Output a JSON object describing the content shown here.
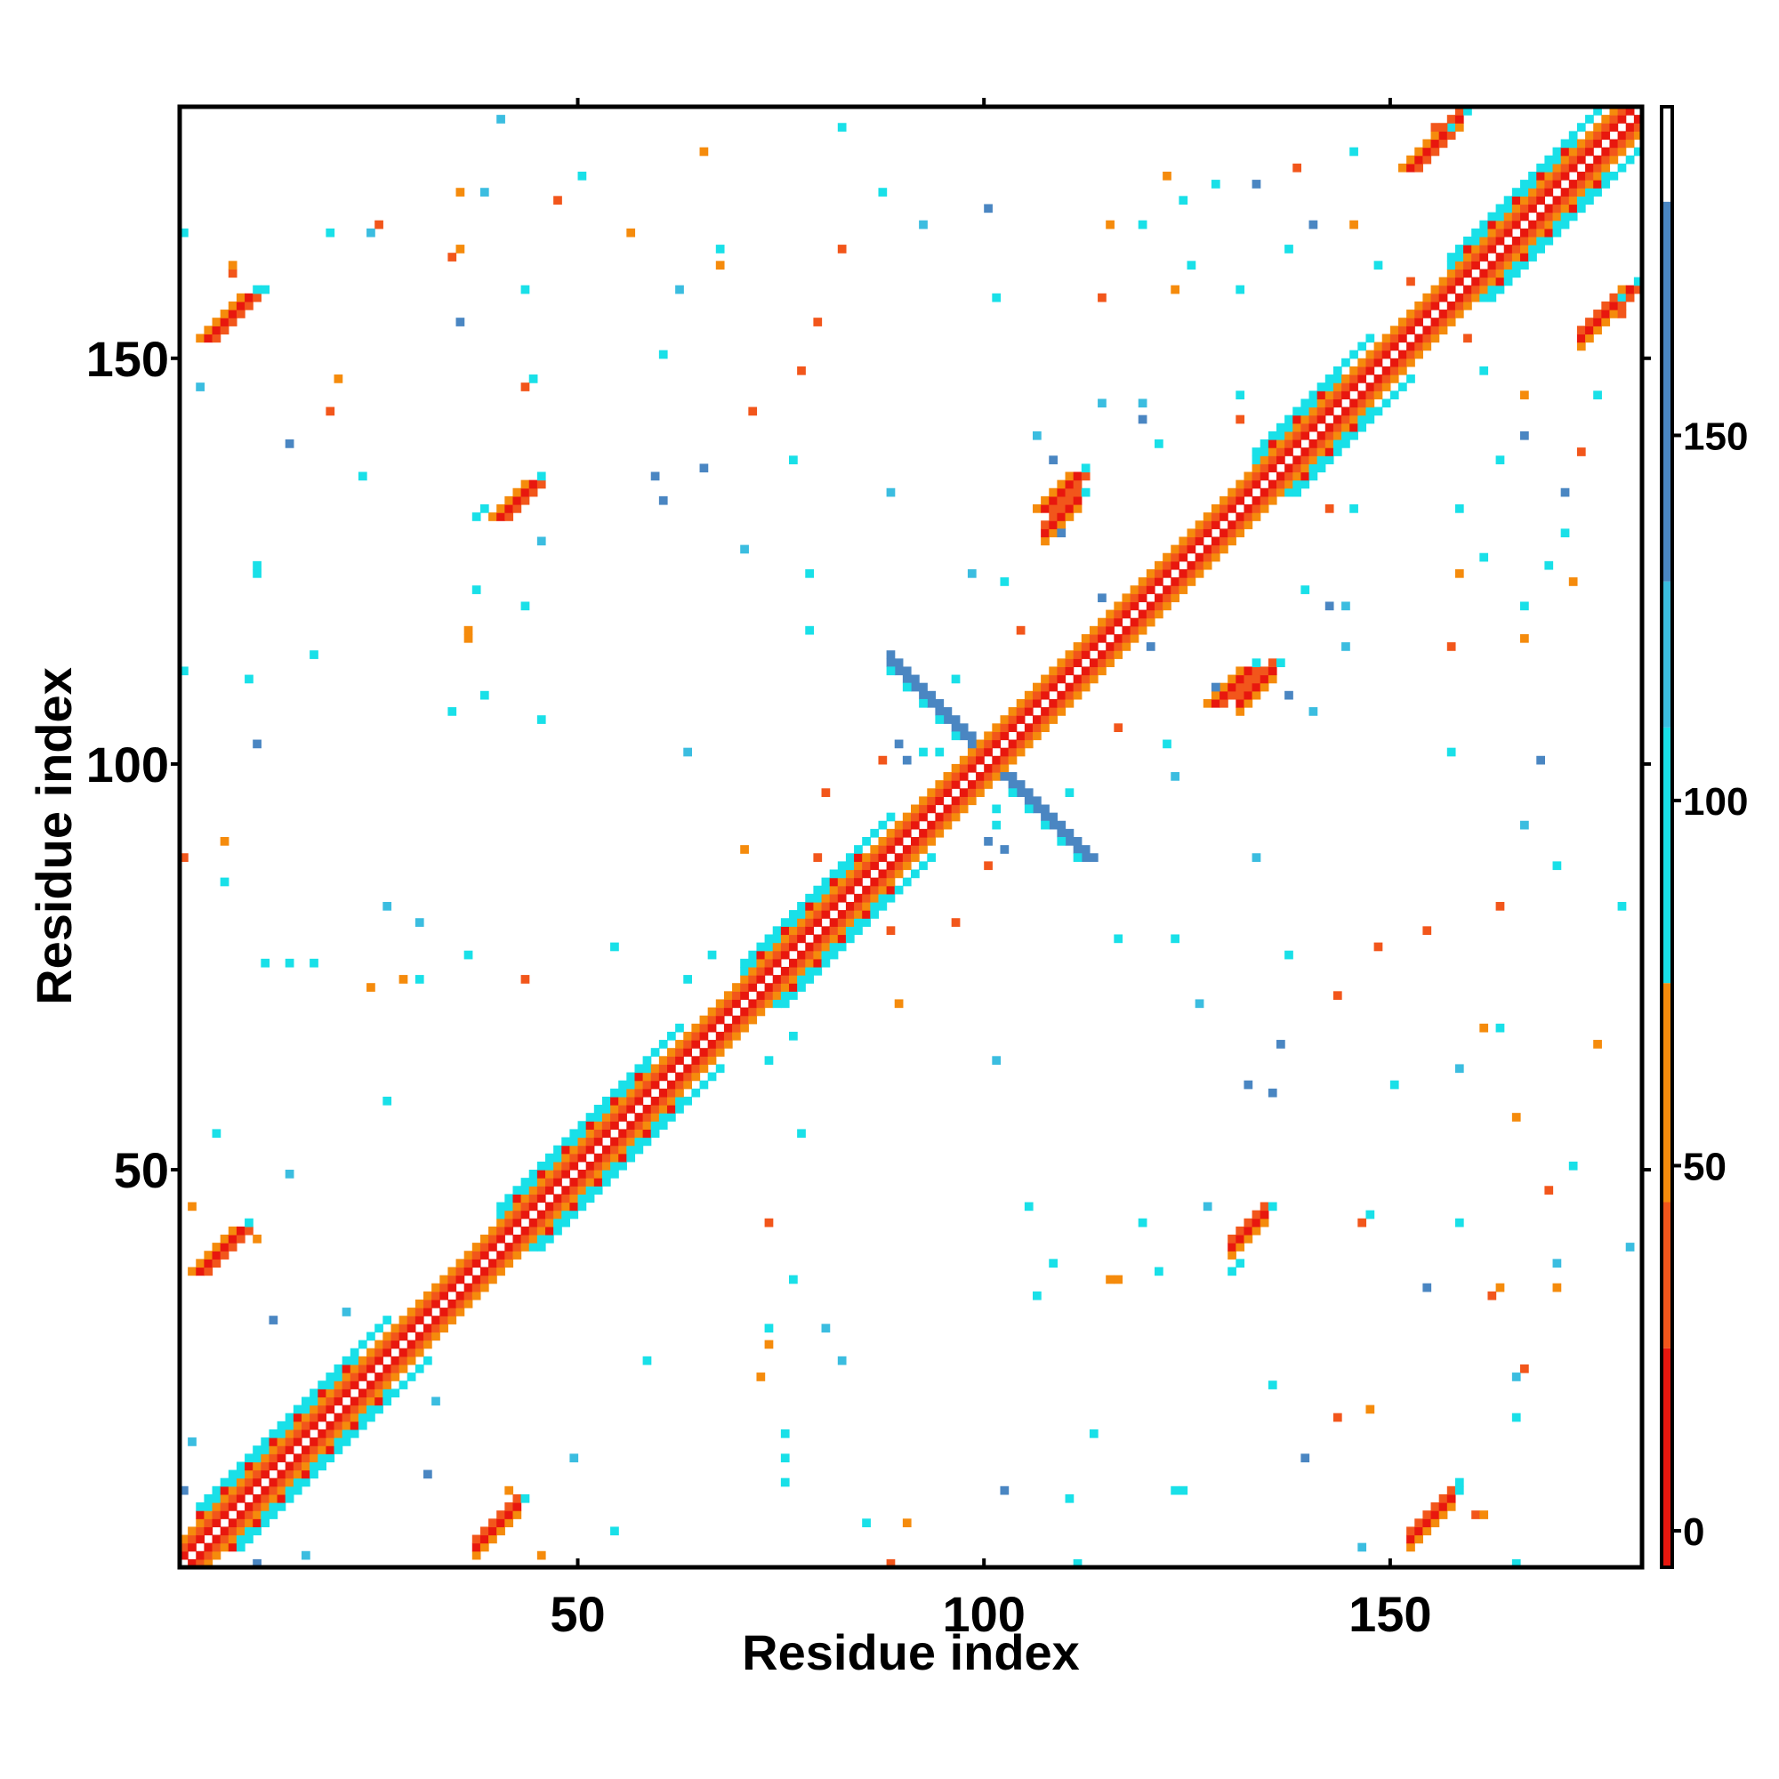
{
  "chart_data": {
    "type": "heatmap",
    "title": "",
    "xlabel": "Residue index",
    "ylabel": "Residue index",
    "xlim": [
      1,
      181
    ],
    "ylim": [
      1,
      181
    ],
    "x_ticks": [
      50,
      100,
      150
    ],
    "x_tick_labels": [
      "50",
      "100",
      "150"
    ],
    "y_ticks": [
      50,
      100,
      150
    ],
    "y_tick_labels": [
      "50",
      "100",
      "150"
    ],
    "grid": false,
    "colorbar": {
      "range": [
        -5,
        195
      ],
      "ticks": [
        0,
        50,
        100,
        150
      ],
      "tick_labels": [
        "0",
        "50",
        "100",
        "150"
      ],
      "bands": [
        {
          "from": -5,
          "to": 25,
          "color": "#e8170e"
        },
        {
          "from": 25,
          "to": 45,
          "color": "#f2561b"
        },
        {
          "from": 45,
          "to": 75,
          "color": "#f58b0c"
        },
        {
          "from": 75,
          "to": 110,
          "color": "#19e0e8"
        },
        {
          "from": 110,
          "to": 130,
          "color": "#3bbde0"
        },
        {
          "from": 130,
          "to": 182,
          "color": "#4a86c2"
        },
        {
          "from": 182,
          "to": 195,
          "color": "#ffffff"
        }
      ]
    },
    "structure": {
      "diagonal": "symmetric contact map; dense banded contacts along the main diagonal",
      "helices": [
        {
          "start": 3,
          "end": 26
        },
        {
          "start": 40,
          "end": 62
        },
        {
          "start": 70,
          "end": 88
        },
        {
          "start": 133,
          "end": 147
        },
        {
          "start": 157,
          "end": 176
        }
      ],
      "antiparallel_pair_centre": 100,
      "off_diagonal_contact_blocks": [
        {
          "x": 37,
          "y": 3,
          "size": 6
        },
        {
          "x": 152,
          "y": 4,
          "size": 6
        },
        {
          "x": 107,
          "y": 128,
          "size": 5
        },
        {
          "x": 130,
          "y": 40,
          "size": 5
        },
        {
          "x": 131,
          "y": 107,
          "size": 5
        },
        {
          "x": 173,
          "y": 152,
          "size": 5
        },
        {
          "x": 154,
          "y": 175,
          "size": 5
        }
      ]
    }
  }
}
